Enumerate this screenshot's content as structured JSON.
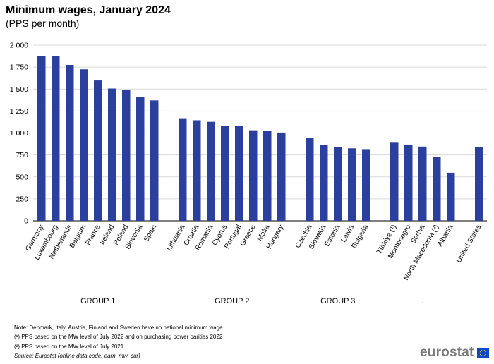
{
  "title": "Minimum wages, January 2024",
  "subtitle": "(PPS per month)",
  "chart_data": {
    "type": "bar",
    "title": "Minimum wages, January 2024",
    "subtitle": "(PPS per month)",
    "xlabel": "",
    "ylabel": "",
    "ylim": [
      0,
      2000
    ],
    "yticks": [
      0,
      250,
      500,
      750,
      1000,
      1250,
      1500,
      1750,
      2000
    ],
    "ytick_labels": [
      "0",
      "250",
      "500",
      "750",
      "1 000",
      "1 250",
      "1 500",
      "1 750",
      "2 000"
    ],
    "grid": true,
    "bar_color": "#2b3f9f",
    "groups": [
      {
        "name": "GROUP 1",
        "categories": [
          "Germany",
          "Luxembourg",
          "Netherlands",
          "Belgium",
          "France",
          "Ireland",
          "Poland",
          "Slovenia",
          "Spain"
        ],
        "values": [
          1876,
          1873,
          1775,
          1725,
          1598,
          1506,
          1491,
          1410,
          1371
        ]
      },
      {
        "name": "GROUP 2",
        "categories": [
          "Lithuania",
          "Croatia",
          "Romania",
          "Cyprus",
          "Portugal",
          "Greece",
          "Malta",
          "Hungary"
        ],
        "values": [
          1168,
          1145,
          1127,
          1083,
          1082,
          1031,
          1028,
          1005
        ]
      },
      {
        "name": "GROUP 3",
        "categories": [
          "Czechia",
          "Slovakia",
          "Estonia",
          "Latvia",
          "Bulgaria"
        ],
        "values": [
          944,
          867,
          838,
          825,
          816
        ]
      },
      {
        "name": ".",
        "categories": [
          "Türkiye (¹)",
          "Montenegro",
          "Serbia",
          "North Macedonia (²)",
          "Albania"
        ],
        "values": [
          889,
          868,
          845,
          727,
          547
        ]
      },
      {
        "name": "",
        "categories": [
          "United States"
        ],
        "values": [
          837
        ]
      }
    ]
  },
  "notes": [
    "Note: Denmark, Italy, Austria, Finland and Sweden have no national minimum wage.",
    "(¹) PPS based on the MW level of July 2022 and on purchasing power parities 2022",
    "(²) PPS based on the MW level of July 2021"
  ],
  "source": "Source: Eurostat (online data code: earn_mw_cur)",
  "logo_text": "eurostat"
}
